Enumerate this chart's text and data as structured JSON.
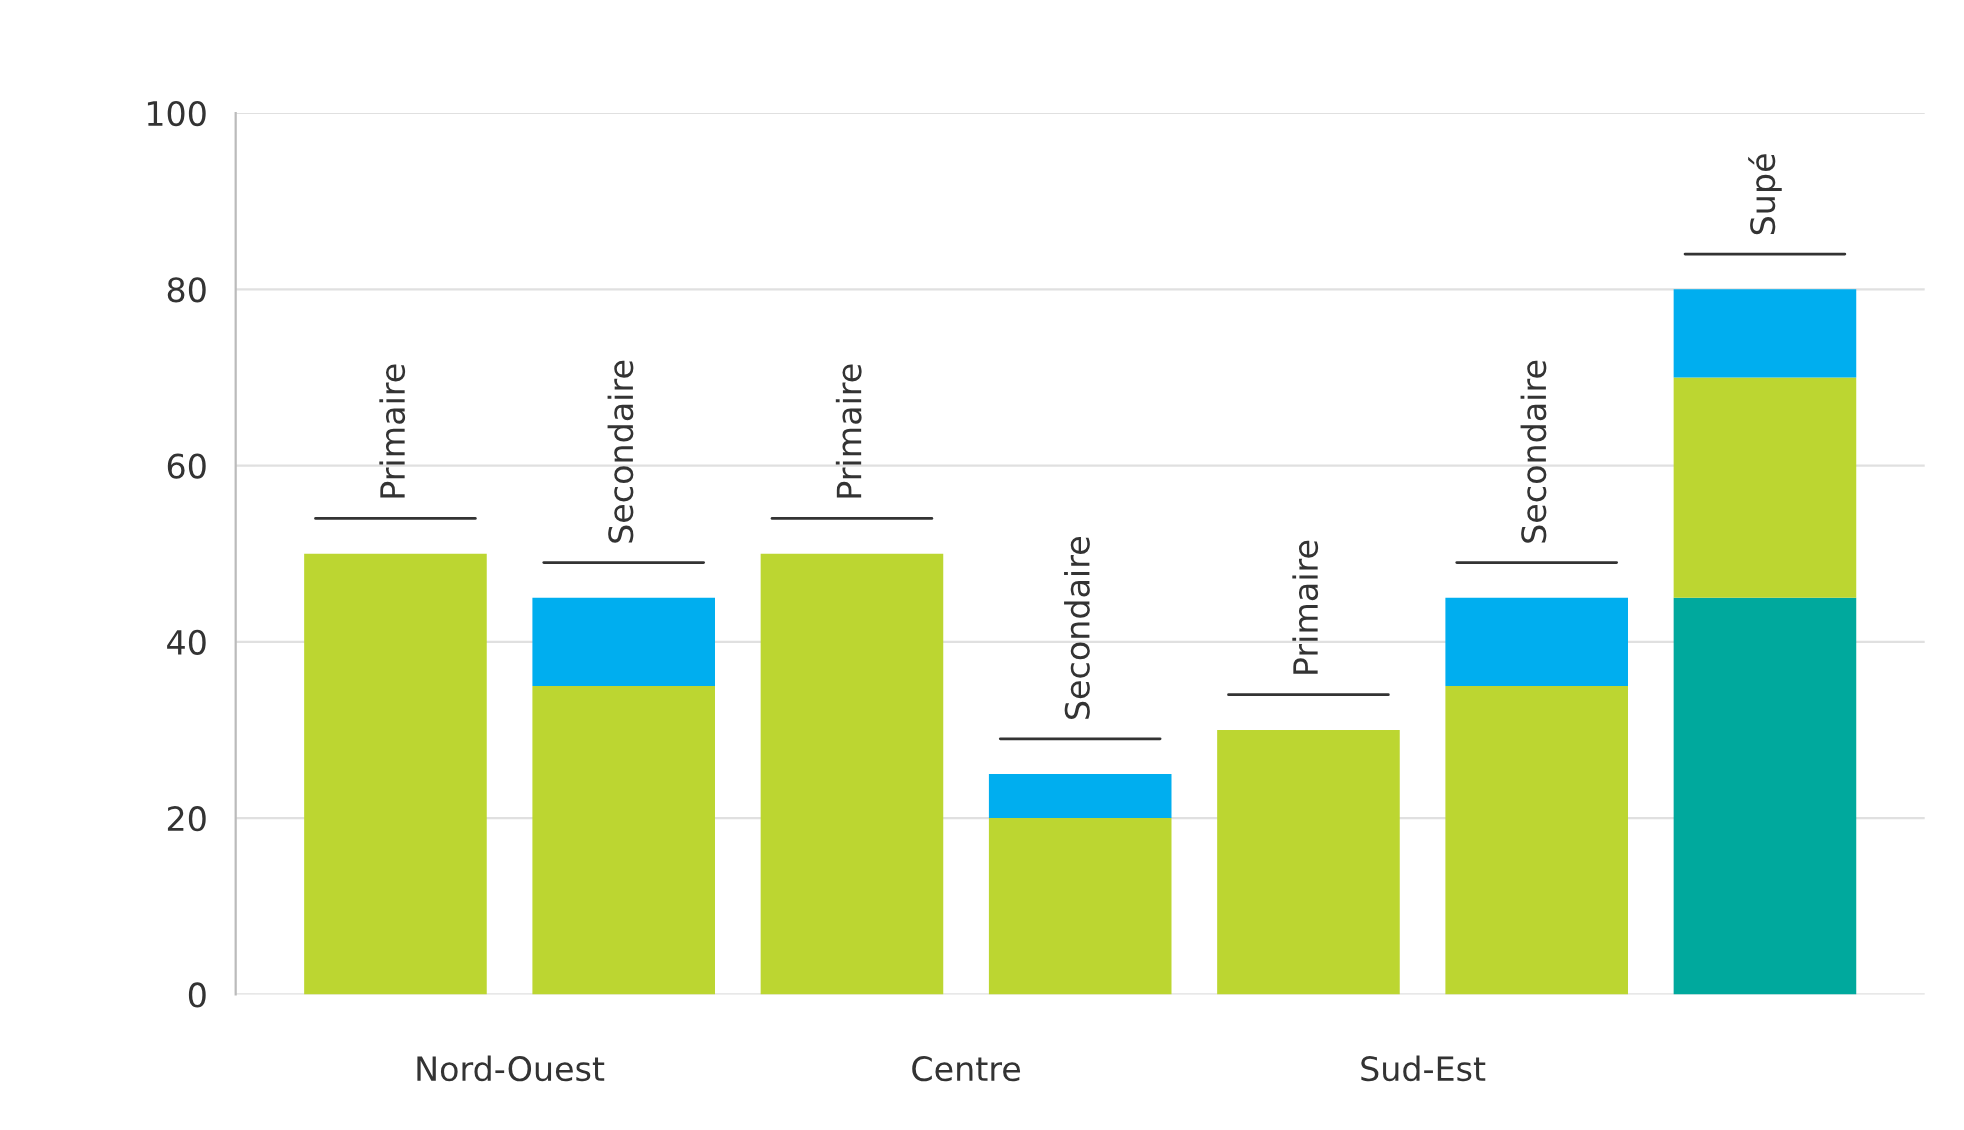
{
  "chart_data": {
    "type": "bar",
    "stacked": true,
    "categories": [
      "Primaire",
      "Secondaire",
      "Primaire",
      "Secondaire",
      "Primaire",
      "Secondaire",
      "Supé"
    ],
    "series": [
      {
        "color": "#00a99d",
        "values": [
          null,
          null,
          null,
          null,
          null,
          null,
          45
        ]
      },
      {
        "color": "#bcd631",
        "values": [
          50,
          35,
          50,
          20,
          30,
          35,
          25
        ]
      },
      {
        "color": "#00aeef",
        "values": [
          null,
          10,
          null,
          5,
          null,
          10,
          10
        ]
      }
    ],
    "annotations": [
      "Nord-Ouest",
      "Centre",
      "Sud-Est"
    ],
    "ylim": [
      0,
      100
    ],
    "yticks": [
      0,
      20,
      40,
      60,
      80,
      100
    ],
    "grid": "y",
    "legend": false
  }
}
